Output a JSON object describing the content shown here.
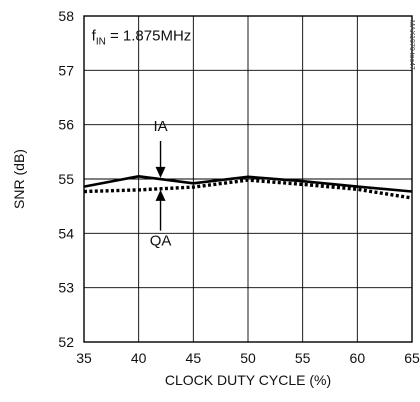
{
  "chart_data": {
    "type": "line",
    "title": "",
    "xlabel": "CLOCK DUTY CYCLE (%)",
    "ylabel": "SNR (dB)",
    "xlim": [
      35,
      65
    ],
    "ylim": [
      52,
      58
    ],
    "xticks": [
      35,
      40,
      45,
      50,
      55,
      60,
      65
    ],
    "yticks": [
      52,
      53,
      54,
      55,
      56,
      57,
      58
    ],
    "grid": true,
    "legend": "none",
    "annotation_main": "f",
    "annotation_sub": "IN",
    "annotation_rest": " = 1.875MHz",
    "side_code": "MAX1070 toc47",
    "series": [
      {
        "name": "IA",
        "style": "solid",
        "color": "#000000",
        "x": [
          35,
          40,
          45,
          50,
          55,
          60,
          65
        ],
        "y": [
          54.86,
          55.05,
          54.92,
          55.04,
          54.96,
          54.86,
          54.77
        ]
      },
      {
        "name": "QA",
        "style": "dotted",
        "color": "#000000",
        "x": [
          35,
          40,
          45,
          50,
          55,
          60,
          65
        ],
        "y": [
          54.77,
          54.8,
          54.85,
          54.98,
          54.9,
          54.81,
          54.65
        ]
      }
    ]
  }
}
